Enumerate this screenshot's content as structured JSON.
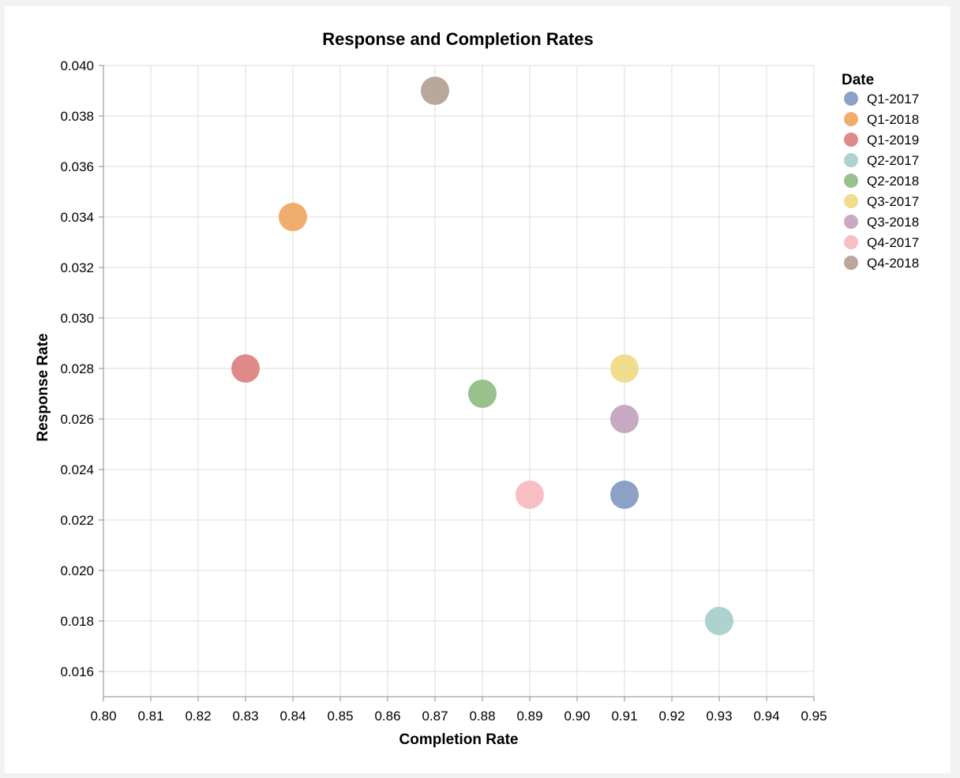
{
  "chart_data": {
    "type": "scatter",
    "title": "Response and Completion Rates",
    "xlabel": "Completion Rate",
    "ylabel": "Response Rate",
    "xlim": [
      0.8,
      0.95
    ],
    "ylim": [
      0.015,
      0.04
    ],
    "x_ticks": [
      "0.80",
      "0.81",
      "0.82",
      "0.83",
      "0.84",
      "0.85",
      "0.86",
      "0.87",
      "0.88",
      "0.89",
      "0.90",
      "0.91",
      "0.92",
      "0.93",
      "0.94",
      "0.95"
    ],
    "y_ticks": [
      "0.016",
      "0.018",
      "0.020",
      "0.022",
      "0.024",
      "0.026",
      "0.028",
      "0.030",
      "0.032",
      "0.034",
      "0.036",
      "0.038",
      "0.040"
    ],
    "grid": true,
    "legend": {
      "title": "Date",
      "placement": "top-right"
    },
    "series": [
      {
        "name": "Q1-2017",
        "color": "#7f97bf",
        "x": 0.91,
        "y": 0.023
      },
      {
        "name": "Q1-2018",
        "color": "#eda55d",
        "x": 0.84,
        "y": 0.034
      },
      {
        "name": "Q1-2019",
        "color": "#dc7d7c",
        "x": 0.83,
        "y": 0.028
      },
      {
        "name": "Q2-2017",
        "color": "#a5cdc8",
        "x": 0.93,
        "y": 0.018
      },
      {
        "name": "Q2-2018",
        "color": "#8eba7e",
        "x": 0.88,
        "y": 0.027
      },
      {
        "name": "Q3-2017",
        "color": "#eed981",
        "x": 0.91,
        "y": 0.028
      },
      {
        "name": "Q3-2018",
        "color": "#c1a0bd",
        "x": 0.91,
        "y": 0.026
      },
      {
        "name": "Q4-2017",
        "color": "#f6b8bd",
        "x": 0.89,
        "y": 0.023
      },
      {
        "name": "Q4-2018",
        "color": "#b39d91",
        "x": 0.87,
        "y": 0.039
      }
    ]
  }
}
